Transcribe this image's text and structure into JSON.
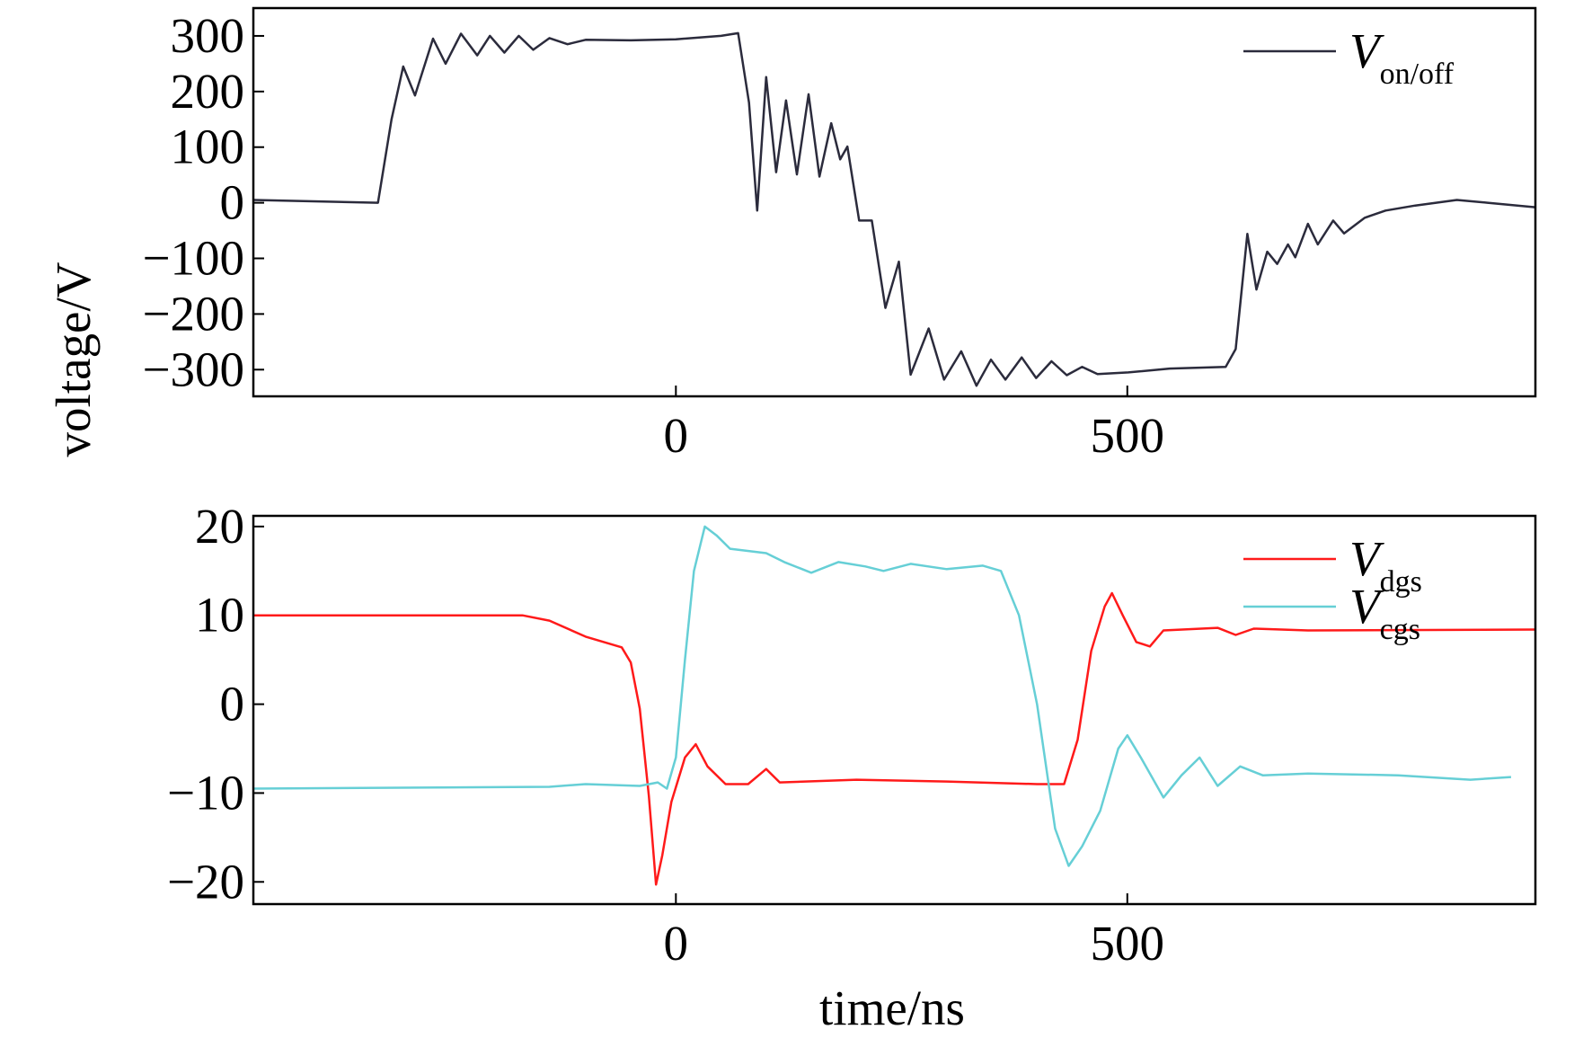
{
  "chart_data": [
    {
      "type": "line",
      "ylabel": "voltage/V",
      "xlim": [
        -468,
        952
      ],
      "xticks": [
        0,
        500
      ],
      "ylim": [
        -348,
        350
      ],
      "yticks": [
        -300,
        -200,
        -100,
        0,
        100,
        200,
        300
      ],
      "legend": "upper right",
      "series": [
        {
          "name": "V",
          "subscript": "on/off",
          "color": "#2b2b3c",
          "x": [
            -468,
            -330,
            -315,
            -302,
            -289,
            -269,
            -255,
            -238,
            -220,
            -206,
            -190,
            -174,
            -158,
            -140,
            -120,
            -100,
            -50,
            0,
            50,
            69,
            81,
            90,
            100,
            111,
            122,
            134,
            147,
            159,
            172,
            182,
            190,
            203,
            217,
            232,
            247,
            260,
            280,
            297,
            316,
            333,
            349,
            365,
            383,
            399,
            416,
            433,
            450,
            467,
            501,
            547,
            609,
            620,
            633,
            643,
            655,
            666,
            678,
            686,
            700,
            711,
            728,
            740,
            763,
            786,
            819,
            865,
            899,
            952
          ],
          "values": [
            5,
            0,
            150,
            245,
            193,
            295,
            250,
            304,
            265,
            300,
            270,
            300,
            275,
            296,
            285,
            293,
            292,
            294,
            300,
            305,
            180,
            -14,
            226,
            55,
            184,
            51,
            195,
            47,
            143,
            78,
            101,
            -32,
            -32,
            -189,
            -106,
            -309,
            -226,
            -318,
            -267,
            -329,
            -282,
            -318,
            -278,
            -315,
            -285,
            -310,
            -295,
            -308,
            -305,
            -298,
            -295,
            -263,
            -56,
            -156,
            -88,
            -110,
            -75,
            -98,
            -38,
            -75,
            -32,
            -55,
            -27,
            -14,
            -5,
            5,
            0,
            -8
          ]
        }
      ]
    },
    {
      "type": "line",
      "xlabel": "time/ns",
      "xlim": [
        -468,
        952
      ],
      "xticks": [
        0,
        500
      ],
      "ylim": [
        -22.5,
        21.2
      ],
      "yticks": [
        -20,
        -10,
        0,
        10,
        20
      ],
      "legend": "upper right",
      "series": [
        {
          "name": "V",
          "subscript": "dgs",
          "color": "#ff1a1a",
          "x": [
            -468,
            -170,
            -140,
            -100,
            -60,
            -50,
            -40,
            -30,
            -22,
            -15,
            -5,
            10,
            22,
            35,
            55,
            80,
            100,
            115,
            200,
            300,
            400,
            430,
            445,
            460,
            475,
            483,
            495,
            510,
            525,
            540,
            600,
            620,
            640,
            700,
            952
          ],
          "values": [
            10,
            10,
            9.4,
            7.6,
            6.4,
            4.7,
            -0.5,
            -10.3,
            -20.3,
            -17,
            -11,
            -6,
            -4.5,
            -7,
            -9,
            -9,
            -7.3,
            -8.8,
            -8.5,
            -8.7,
            -9,
            -9,
            -4,
            6,
            11,
            12.5,
            10,
            7,
            6.5,
            8.3,
            8.6,
            7.8,
            8.5,
            8.3,
            8.4
          ]
        },
        {
          "name": "V",
          "subscript": "cgs",
          "color": "#66cfd6",
          "x": [
            -468,
            -140,
            -100,
            -40,
            -20,
            -10,
            0,
            10,
            20,
            32,
            45,
            60,
            100,
            120,
            150,
            180,
            210,
            230,
            260,
            300,
            340,
            360,
            380,
            400,
            420,
            435,
            450,
            470,
            490,
            500,
            515,
            540,
            560,
            580,
            600,
            625,
            650,
            700,
            800,
            880,
            925
          ],
          "values": [
            -9.5,
            -9.3,
            -9,
            -9.2,
            -8.8,
            -9.5,
            -6,
            5,
            15,
            20,
            19,
            17.5,
            17,
            16,
            14.8,
            16,
            15.5,
            15,
            15.8,
            15.2,
            15.6,
            15,
            10,
            0,
            -14,
            -18.2,
            -16,
            -12,
            -5,
            -3.5,
            -6,
            -10.5,
            -8,
            -6,
            -9.2,
            -7,
            -8,
            -7.8,
            -8,
            -8.5,
            -8.2
          ]
        }
      ]
    }
  ]
}
